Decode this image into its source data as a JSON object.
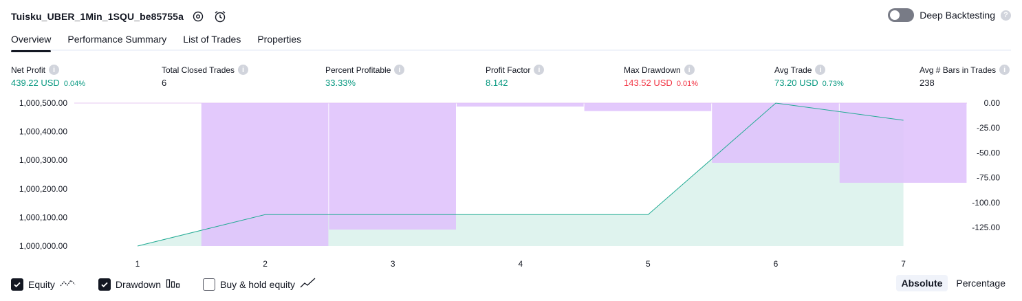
{
  "header": {
    "strategy_name": "Tuisku_UBER_1Min_1SQU_be85755a",
    "deep_backtesting_label": "Deep Backtesting",
    "help_glyph": "?"
  },
  "tabs": [
    {
      "label": "Overview",
      "active": true
    },
    {
      "label": "Performance Summary",
      "active": false
    },
    {
      "label": "List of Trades",
      "active": false
    },
    {
      "label": "Properties",
      "active": false
    }
  ],
  "metrics": {
    "net_profit": {
      "label": "Net Profit",
      "value": "439.22 USD",
      "pct": "0.04%"
    },
    "total_closed_trades": {
      "label": "Total Closed Trades",
      "value": "6"
    },
    "percent_profitable": {
      "label": "Percent Profitable",
      "value": "33.33%"
    },
    "profit_factor": {
      "label": "Profit Factor",
      "value": "8.142"
    },
    "max_drawdown": {
      "label": "Max Drawdown",
      "value": "143.52 USD",
      "pct": "0.01%"
    },
    "avg_trade": {
      "label": "Avg Trade",
      "value": "73.20 USD",
      "pct": "0.73%"
    },
    "avg_bars": {
      "label": "Avg # Bars in Trades",
      "value": "238"
    }
  },
  "chart_data": {
    "type": "area",
    "x": [
      1,
      2,
      3,
      4,
      5,
      6,
      7
    ],
    "left_axis_ticks": [
      "1,000,500.00",
      "1,000,400.00",
      "1,000,300.00",
      "1,000,200.00",
      "1,000,100.00",
      "1,000,000.00"
    ],
    "right_axis_ticks": [
      "0.00",
      "-25.00",
      "-50.00",
      "-75.00",
      "-100.00",
      "-125.00"
    ],
    "ylim_left": [
      1000000,
      1000500
    ],
    "ylim_right": [
      -143.52,
      0
    ],
    "equity": {
      "x": [
        1,
        2,
        3,
        4,
        5,
        6,
        7
      ],
      "values": [
        1000000,
        1000110,
        1000110,
        1000110,
        1000110,
        1000500,
        1000440
      ]
    },
    "drawdown": {
      "x": [
        2,
        3,
        4,
        5,
        6,
        7
      ],
      "values": [
        -143.52,
        -127,
        -3.5,
        -8,
        -60,
        -80
      ]
    },
    "colors": {
      "equity_line": "#22ab94",
      "equity_fill": "#dff3ee",
      "drawdown_fill": "#dfc2fc"
    }
  },
  "footer": {
    "equity_label": "Equity",
    "drawdown_label": "Drawdown",
    "buy_hold_label": "Buy & hold equity",
    "equity_checked": true,
    "drawdown_checked": true,
    "buy_hold_checked": false,
    "absolute_label": "Absolute",
    "percentage_label": "Percentage"
  }
}
